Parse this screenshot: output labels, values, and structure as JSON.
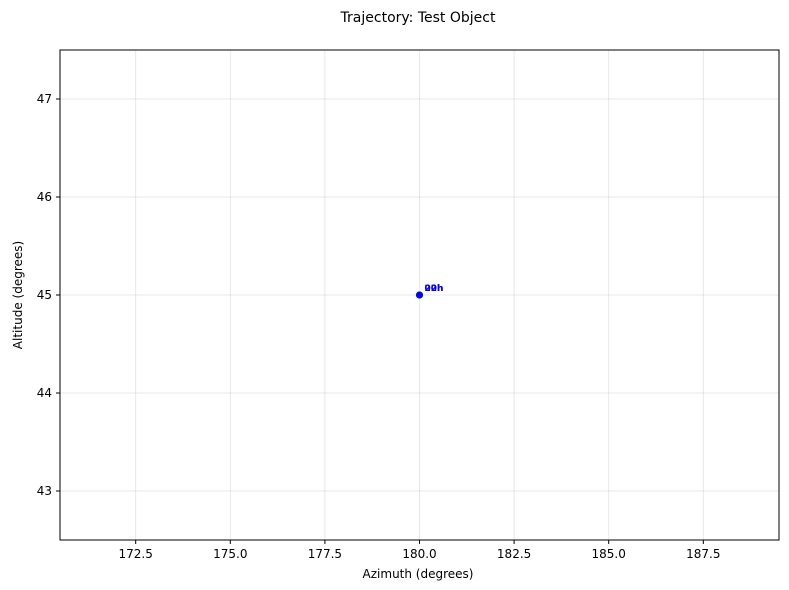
{
  "chart_data": {
    "type": "scatter",
    "title": "Trajectory: Test Object",
    "xlabel": "Azimuth (degrees)",
    "ylabel": "Altitude (degrees)",
    "xlim": [
      170.5,
      189.5
    ],
    "ylim": [
      42.5,
      47.5
    ],
    "xticks": [
      172.5,
      175.0,
      177.5,
      180.0,
      182.5,
      185.0,
      187.5
    ],
    "xtick_labels": [
      "172.5",
      "175.0",
      "177.5",
      "180.0",
      "182.5",
      "185.0",
      "187.5"
    ],
    "yticks": [
      43,
      44,
      45,
      46,
      47
    ],
    "ytick_labels": [
      "43",
      "44",
      "45",
      "46",
      "47"
    ],
    "grid": true,
    "point_color": "#0000ff",
    "series": [
      {
        "x": [
          180.0,
          180.0
        ],
        "y": [
          45.0,
          45.0
        ],
        "labels": [
          "00h",
          "22h"
        ]
      }
    ]
  }
}
